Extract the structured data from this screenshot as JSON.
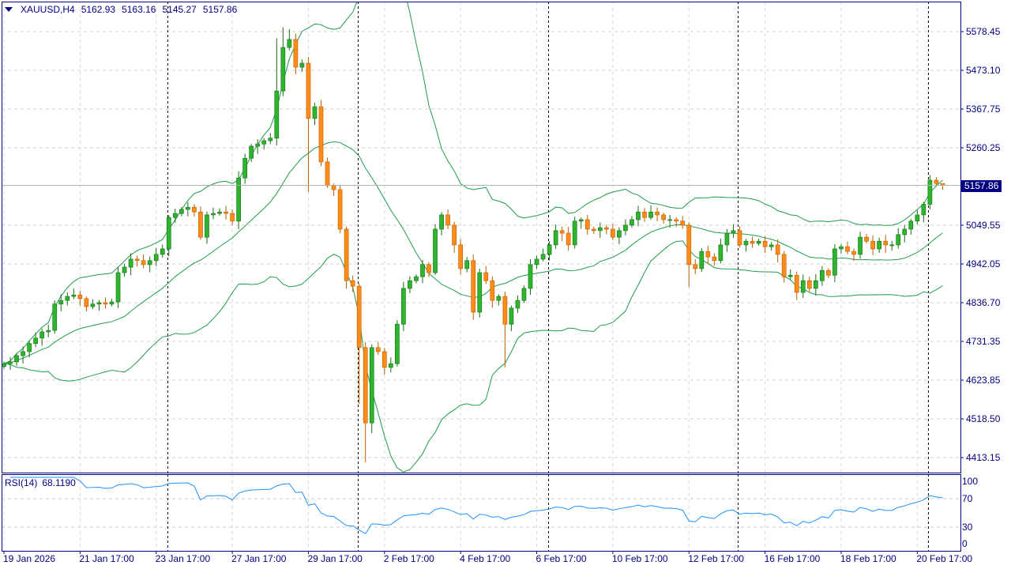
{
  "header": {
    "symbol": "XAUUSD,H4",
    "open": "5162.93",
    "high": "5163.16",
    "low": "5145.27",
    "close": "5157.86"
  },
  "current_price_label": "5157.86",
  "rsi_panel": {
    "name": "RSI(14)",
    "value": "68.1190",
    "levels": [
      "100",
      "70",
      "30",
      "0"
    ]
  },
  "colors": {
    "bull": "#2db52d",
    "bear": "#ff8c1a",
    "bands": "#1f9d48",
    "rsi": "#1e90ff",
    "frame": "#000080"
  },
  "chart_data": {
    "type": "candlestick",
    "title": "XAUUSD,H4",
    "indicators": [
      "Bollinger Bands(20,2)",
      "RSI(14)"
    ],
    "ylim": [
      4390,
      5600
    ],
    "y_ticks": [
      "5578.45",
      "5473.10",
      "5367.75",
      "5260.25",
      "5154.90",
      "5049.55",
      "4942.05",
      "4836.70",
      "4731.35",
      "4623.85",
      "4518.50",
      "4413.15"
    ],
    "x_tick_labels": [
      "19 Jan 2026",
      "21 Jan 17:00",
      "23 Jan 17:00",
      "27 Jan 17:00",
      "29 Jan 17:00",
      "2 Feb 17:00",
      "4 Feb 17:00",
      "6 Feb 17:00",
      "10 Feb 17:00",
      "12 Feb 17:00",
      "16 Feb 17:00",
      "18 Feb 17:00",
      "20 Feb 17:00"
    ],
    "x_tick_every_n_bars": 12,
    "week_separators_after_bar": [
      25,
      55,
      85,
      115,
      145
    ],
    "first_open": 4662,
    "close": [
      4670,
      4675,
      4692,
      4703,
      4725,
      4740,
      4757,
      4761,
      4833,
      4843,
      4854,
      4858,
      4848,
      4826,
      4833,
      4837,
      4833,
      4839,
      4919,
      4934,
      4956,
      4952,
      4941,
      4952,
      4969,
      4984,
      5070,
      5081,
      5092,
      5098,
      5085,
      5016,
      5077,
      5081,
      5085,
      5081,
      5060,
      5178,
      5232,
      5265,
      5271,
      5280,
      5287,
      5416,
      5535,
      5557,
      5481,
      5492,
      5341,
      5373,
      5222,
      5157,
      5146,
      5038,
      4897,
      4882,
      4714,
      4508,
      4714,
      4703,
      4660,
      4670,
      4778,
      4876,
      4897,
      4908,
      4941,
      4919,
      5038,
      5077,
      5049,
      4995,
      4930,
      4952,
      4811,
      4919,
      4897,
      4843,
      4854,
      4778,
      4822,
      4843,
      4876,
      4941,
      4956,
      4969,
      4995,
      5034,
      5027,
      4995,
      5060,
      5064,
      5038,
      5034,
      5042,
      5038,
      5016,
      5034,
      5049,
      5064,
      5085,
      5070,
      5085,
      5077,
      5064,
      5064,
      5060,
      5049,
      4941,
      4930,
      4977,
      4962,
      4952,
      4995,
      5027,
      5034,
      4995,
      5005,
      4999,
      5005,
      4990,
      4995,
      4969,
      4908,
      4912,
      4865,
      4897,
      4876,
      4897,
      4925,
      4912,
      4984,
      4990,
      4977,
      4969,
      5016,
      5005,
      4984,
      5005,
      4995,
      4995,
      5023,
      5038,
      5060,
      5077,
      5106,
      5172,
      5163,
      5157.86
    ],
    "last_bar": {
      "open": 5162.93,
      "high": 5163.16,
      "low": 5145.27,
      "close": 5157.86
    },
    "wick_overrides": {
      "43": {
        "high": 5560
      },
      "44": {
        "high": 5590
      },
      "45": {
        "high": 5585
      },
      "48": {
        "low": 5140
      },
      "56": {
        "low": 4560
      },
      "57": {
        "low": 4400
      },
      "58": {
        "low": 4480
      },
      "79": {
        "low": 4660
      },
      "108": {
        "low": 4880
      }
    }
  }
}
